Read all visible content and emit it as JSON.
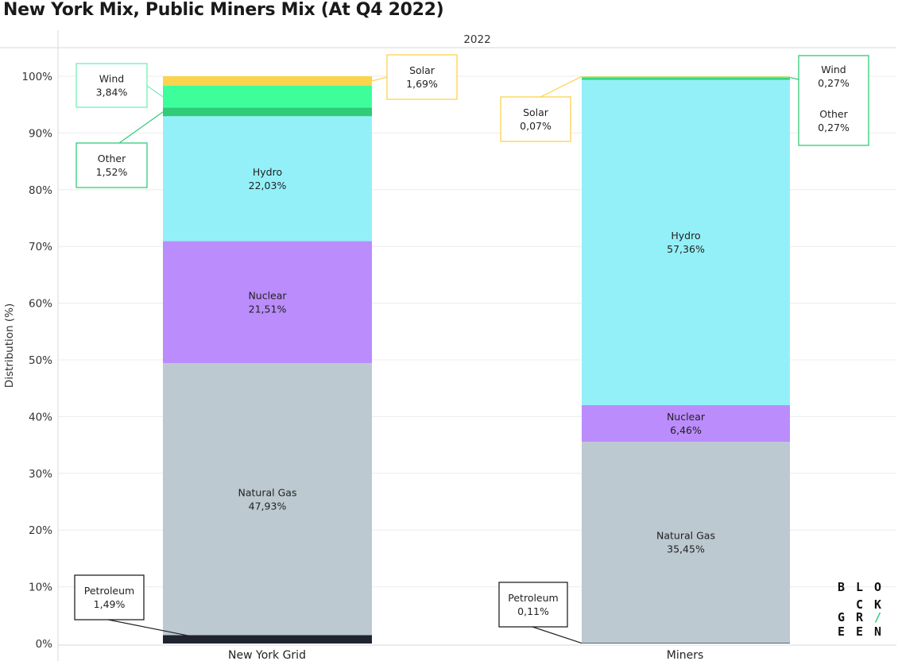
{
  "chart_data": {
    "type": "bar",
    "stacked": true,
    "title": "New York Mix, Public Miners Mix (At Q4 2022)",
    "panel_header": "2022",
    "ylabel": "Distribution (%)",
    "ylim": [
      0,
      100
    ],
    "yticks": [
      "0%",
      "10%",
      "20%",
      "30%",
      "40%",
      "50%",
      "60%",
      "70%",
      "80%",
      "90%",
      "100%"
    ],
    "categories": [
      "New York Grid",
      "Miners"
    ],
    "series": [
      {
        "name": "Petroleum",
        "color": "#1f2430",
        "values": [
          1.49,
          0.11
        ],
        "labels": [
          "1,49%",
          "0,11%"
        ]
      },
      {
        "name": "Natural Gas",
        "color": "#bcc9d1",
        "values": [
          47.93,
          35.45
        ],
        "labels": [
          "47,93%",
          "35,45%"
        ]
      },
      {
        "name": "Nuclear",
        "color": "#bb8cfb",
        "values": [
          21.51,
          6.46
        ],
        "labels": [
          "21,51%",
          "6,46%"
        ]
      },
      {
        "name": "Hydro",
        "color": "#94f0f8",
        "values": [
          22.03,
          57.36
        ],
        "labels": [
          "22,03%",
          "57,36%"
        ]
      },
      {
        "name": "Other",
        "color": "#2fcb78",
        "values": [
          1.52,
          0.27
        ],
        "labels": [
          "1,52%",
          "0,27%"
        ]
      },
      {
        "name": "Wind",
        "color": "#3dfe9b",
        "values": [
          3.84,
          0.27
        ],
        "labels": [
          "3,84%",
          "0,27%"
        ]
      },
      {
        "name": "Solar",
        "color": "#fcd34d",
        "values": [
          1.69,
          0.07
        ],
        "labels": [
          "1,69%",
          "0,07%"
        ]
      }
    ],
    "grid": true
  },
  "logo": {
    "rows": [
      [
        "B",
        "L",
        "O"
      ],
      [
        "",
        "C",
        "K"
      ],
      [
        "G",
        "R",
        "/"
      ],
      [
        "E",
        "E",
        "N"
      ]
    ],
    "slash_color": "#2fcb78"
  }
}
